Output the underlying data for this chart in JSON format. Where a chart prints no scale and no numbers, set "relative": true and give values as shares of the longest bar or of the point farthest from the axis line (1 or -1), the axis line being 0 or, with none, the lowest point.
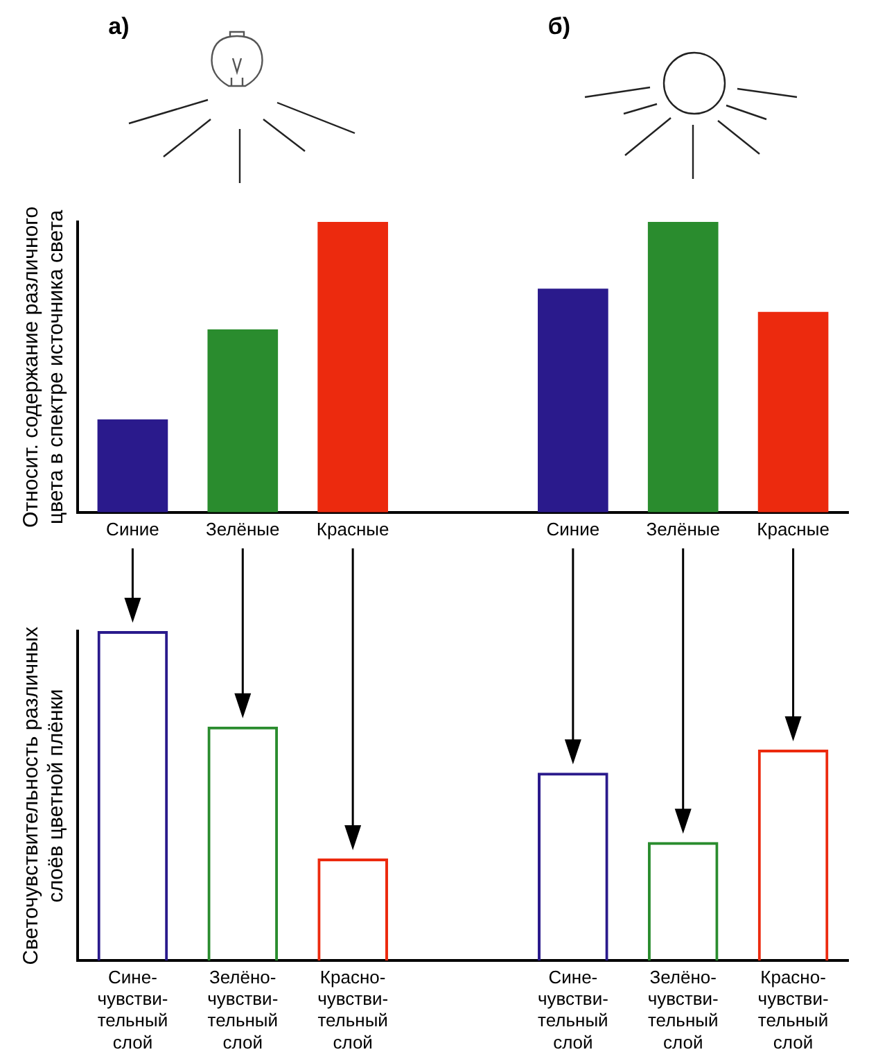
{
  "chart_data": [
    {
      "type": "bar",
      "relative": true,
      "ylabel": "Относит. содержание различного\nцвета в спектре источника света",
      "categories": [
        "Синие",
        "Зелёные",
        "Красные",
        null,
        "Синие",
        "Зелёные",
        "Красные"
      ],
      "values": [
        0.32,
        0.63,
        1,
        null,
        0.77,
        1,
        0.69
      ],
      "colors": [
        "#2a1a8c",
        "#2a8c2e",
        "#ec2a0e",
        null,
        "#2a1a8c",
        "#2a8c2e",
        "#ec2a0e"
      ],
      "annotations": [
        "а)",
        "б)"
      ],
      "grid": false,
      "legend": false
    },
    {
      "type": "bar",
      "relative": true,
      "ylabel": "Светочувствительность различных\nслоёв цветной плёнки",
      "categories": [
        "Сине-\nчувстви-\nтельный\nслой",
        "Зелёно-\nчувстви-\nтельный\nслой",
        "Красно-\nчувстви-\nтельный\nслой",
        null,
        "Сине-\nчувстви-\nтельный\nслой",
        "Зелёно-\nчувстви-\nтельный\nслой",
        "Красно-\nчувстви-\nтельный\nслой"
      ],
      "values": [
        1,
        0.71,
        0.31,
        null,
        0.57,
        0.36,
        0.64
      ],
      "colors": [
        "#2a1a8c",
        "#2a8c2e",
        "#ec2a0e",
        null,
        "#2a1a8c",
        "#2a8c2e",
        "#ec2a0e"
      ],
      "grid": false,
      "legend": false
    }
  ]
}
